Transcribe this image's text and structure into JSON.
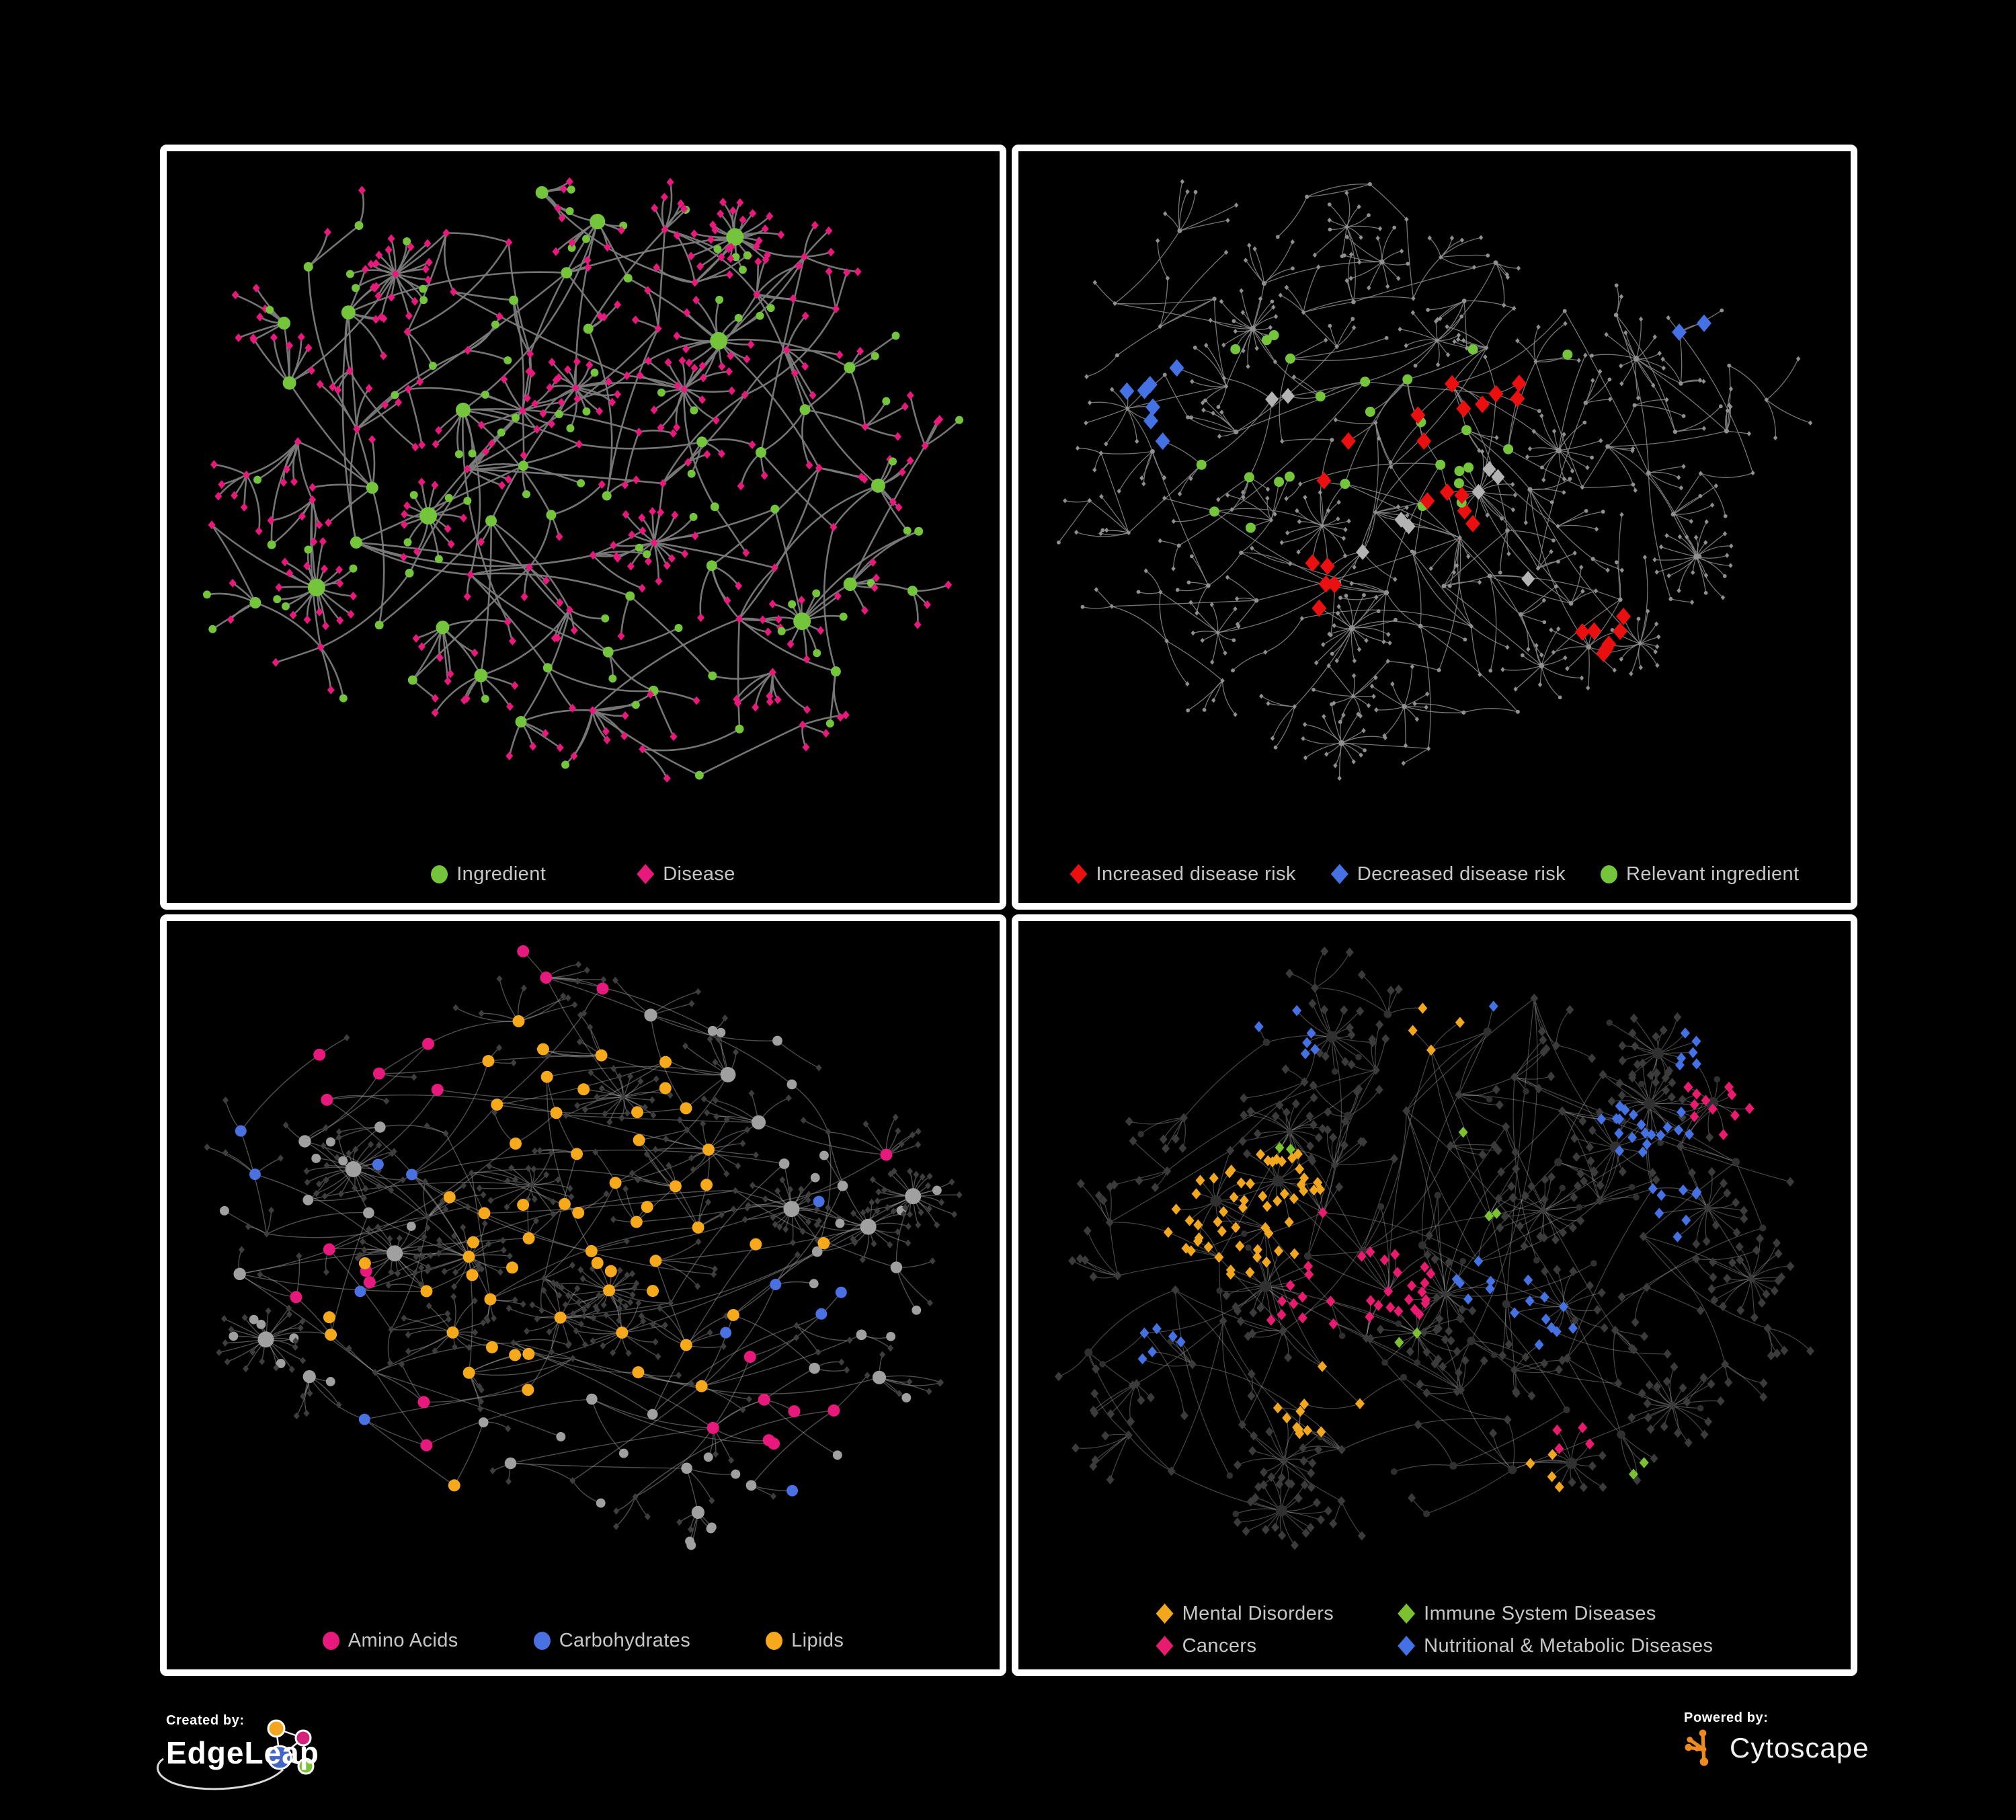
{
  "figure": {
    "background": "#000000",
    "panel_border_color": "#ffffff"
  },
  "panels": [
    {
      "name": "ingredient-disease-network",
      "legend_layout": "row",
      "legend": [
        {
          "label": "Ingredient",
          "shape": "circle",
          "color": "#74C53C"
        },
        {
          "label": "Disease",
          "shape": "diamond",
          "color": "#E8197D"
        }
      ],
      "graph": {
        "type": "network",
        "seed": 7,
        "gen": {
          "internal": 100,
          "recency": 0.55,
          "spread": 2.6,
          "minDist": 84,
          "fanProb": 0.13,
          "fanMin": 10,
          "fanMax": 24,
          "leafMax": 8,
          "leafR0": 26,
          "leafR1": 30,
          "extra": 34
        },
        "style": {
          "edge": {
            "color": "#7B7B7B",
            "width": 2.6,
            "opacity": 0.95
          },
          "circle": {
            "color": "#74C53C",
            "r": 5.5,
            "rDeg": 0.5,
            "rMax": 13
          },
          "diamond": {
            "color": "#E8197D",
            "r": 5.5
          },
          "circleShareInternal": 0.55,
          "leafDiamondShare": 0.82,
          "highlights": []
        }
      }
    },
    {
      "name": "disease-risk-network",
      "legend_layout": "row",
      "legend": [
        {
          "label": "Increased disease risk",
          "shape": "diamond",
          "color": "#EB1010"
        },
        {
          "label": "Decreased disease risk",
          "shape": "diamond",
          "color": "#4472E4"
        },
        {
          "label": "Relevant ingredient",
          "shape": "circle",
          "color": "#74C53C"
        }
      ],
      "graph": {
        "type": "network",
        "seed": 13,
        "gen": {
          "internal": 135,
          "recency": 0.5,
          "spread": 2.4,
          "minDist": 74,
          "fanProb": 0.11,
          "fanMin": 9,
          "fanMax": 20,
          "leafMax": 7,
          "leafR0": 24,
          "leafR1": 30,
          "extra": 26
        },
        "style": {
          "edge": {
            "color": "#8A8A8A",
            "width": 1.3,
            "opacity": 0.85
          },
          "circle": {
            "color": "#8F8F8F",
            "r": 2.8,
            "rDeg": 0.1,
            "rMax": 4.5
          },
          "diamond": {
            "color": "#8F8F8F",
            "r": 3.2
          },
          "circleShareInternal": 0.5,
          "leafDiamondShare": 0.8,
          "highlights": [
            {
              "shape": "diamond",
              "color": "#EB1010",
              "r": 11,
              "count": 27,
              "spread": 0.06,
              "jitter": 0.12,
              "centers": [
                [
                  0.42,
                  0.3
                ],
                [
                  0.5,
                  0.42
                ],
                [
                  0.37,
                  0.48
                ],
                [
                  0.57,
                  0.35
                ],
                [
                  0.52,
                  0.55
                ],
                [
                  0.33,
                  0.68
                ],
                [
                  0.72,
                  0.75
                ]
              ]
            },
            {
              "shape": "diamond",
              "color": "#4472E4",
              "r": 11,
              "count": 9,
              "spread": 0.045,
              "jitter": 0.1,
              "centers": [
                [
                  0.12,
                  0.32
                ],
                [
                  0.15,
                  0.42
                ],
                [
                  0.87,
                  0.25
                ]
              ]
            },
            {
              "shape": "diamond",
              "color": "#B3B3B3",
              "r": 10,
              "count": 9,
              "spread": 0.05,
              "jitter": 0.15,
              "centers": [
                [
                  0.28,
                  0.38
                ],
                [
                  0.55,
                  0.5
                ],
                [
                  0.07,
                  0.28
                ],
                [
                  0.6,
                  0.66
                ],
                [
                  0.44,
                  0.6
                ]
              ]
            },
            {
              "shape": "circle",
              "color": "#74C53C",
              "r": 7.5,
              "count": 26,
              "spread": 0.1,
              "jitter": 0.2,
              "centers": [
                [
                  0.44,
                  0.38
                ],
                [
                  0.3,
                  0.33
                ],
                [
                  0.54,
                  0.48
                ],
                [
                  0.24,
                  0.52
                ],
                [
                  0.62,
                  0.3
                ],
                [
                  0.4,
                  0.55
                ]
              ]
            }
          ]
        }
      }
    },
    {
      "name": "ingredient-class-network",
      "legend_layout": "row",
      "legend": [
        {
          "label": "Amino Acids",
          "shape": "circle",
          "color": "#E8197D"
        },
        {
          "label": "Carbohydrates",
          "shape": "circle",
          "color": "#4971E1"
        },
        {
          "label": "Lipids",
          "shape": "circle",
          "color": "#F7A91C"
        }
      ],
      "graph": {
        "type": "network",
        "seed": 29,
        "gen": {
          "internal": 115,
          "recency": 0.55,
          "spread": 2.6,
          "minDist": 80,
          "fanProb": 0.14,
          "fanMin": 12,
          "fanMax": 26,
          "leafMax": 8,
          "leafR0": 25,
          "leafR1": 30,
          "extra": 30
        },
        "style": {
          "edge": {
            "color": "#9C9C9C",
            "width": 1.4,
            "opacity": 0.5
          },
          "circle": {
            "color": "#A0A0A0",
            "r": 6.5,
            "rDeg": 0.45,
            "rMax": 12
          },
          "diamond": {
            "color": "#3E3E3E",
            "r": 4.5
          },
          "circleShareInternal": 0.88,
          "leafDiamondShare": 0.88,
          "highlights": [
            {
              "shape": "circle",
              "color": "#F7A91C",
              "r": 9,
              "count": 58,
              "spread": 0.07,
              "jitter": 0.25,
              "centers": [
                [
                  0.47,
                  0.4
                ],
                [
                  0.52,
                  0.22
                ],
                [
                  0.43,
                  0.5
                ],
                [
                  0.55,
                  0.6
                ],
                [
                  0.35,
                  0.65
                ],
                [
                  0.62,
                  0.45
                ]
              ]
            },
            {
              "shape": "circle",
              "color": "#E8197D",
              "r": 9,
              "count": 22,
              "spread": 0.05,
              "jitter": 0.3,
              "centers": [
                [
                  0.72,
                  0.72
                ],
                [
                  0.75,
                  0.78
                ],
                [
                  0.12,
                  0.52
                ],
                [
                  0.3,
                  0.82
                ],
                [
                  0.2,
                  0.2
                ],
                [
                  0.95,
                  0.28
                ],
                [
                  0.35,
                  0.62
                ],
                [
                  0.45,
                  0.05
                ]
              ]
            },
            {
              "shape": "circle",
              "color": "#4971E1",
              "r": 8.5,
              "count": 12,
              "spread": 0.03,
              "jitter": 0.25,
              "centers": [
                [
                  0.5,
                  0.42
                ],
                [
                  0.52,
                  0.38
                ],
                [
                  0.3,
                  0.05
                ],
                [
                  0.72,
                  0.6
                ],
                [
                  0.05,
                  0.3
                ]
              ]
            }
          ]
        }
      }
    },
    {
      "name": "disease-category-network",
      "legend_layout": "grid2",
      "legend": [
        {
          "label": "Mental Disorders",
          "shape": "diamond",
          "color": "#F2A71F"
        },
        {
          "label": "Immune System Diseases",
          "shape": "diamond",
          "color": "#7CC230"
        },
        {
          "label": "Cancers",
          "shape": "diamond",
          "color": "#E81B6E"
        },
        {
          "label": "Nutritional & Metabolic Diseases",
          "shape": "diamond",
          "color": "#4472E4"
        }
      ],
      "graph": {
        "type": "network",
        "seed": 47,
        "gen": {
          "internal": 110,
          "recency": 0.55,
          "spread": 2.5,
          "minDist": 78,
          "fanProb": 0.14,
          "fanMin": 12,
          "fanMax": 26,
          "leafMax": 8,
          "leafR0": 25,
          "leafR1": 30,
          "extra": 30
        },
        "style": {
          "edge": {
            "color": "#9C9C9C",
            "width": 1.2,
            "opacity": 0.45
          },
          "circle": {
            "color": "#303030",
            "r": 4.5,
            "rDeg": 0.3,
            "rMax": 8.5
          },
          "diamond": {
            "color": "#3B3B3B",
            "r": 6
          },
          "circleShareInternal": 0.3,
          "leafDiamondShare": 0.95,
          "highlights": [
            {
              "shape": "diamond",
              "color": "#F2A71F",
              "r": 7,
              "count": 75,
              "spread": 0.06,
              "jitter": 0.12,
              "centers": [
                [
                  0.2,
                  0.45
                ],
                [
                  0.25,
                  0.52
                ],
                [
                  0.28,
                  0.4
                ],
                [
                  0.5,
                  0.16
                ],
                [
                  0.36,
                  0.76
                ],
                [
                  0.62,
                  0.9
                ]
              ]
            },
            {
              "shape": "diamond",
              "color": "#E81B6E",
              "r": 7,
              "count": 48,
              "spread": 0.05,
              "jitter": 0.15,
              "centers": [
                [
                  0.38,
                  0.5
                ],
                [
                  0.44,
                  0.56
                ],
                [
                  0.34,
                  0.58
                ],
                [
                  0.47,
                  0.42
                ],
                [
                  0.9,
                  0.25
                ],
                [
                  0.66,
                  0.82
                ]
              ]
            },
            {
              "shape": "diamond",
              "color": "#4472E4",
              "r": 7,
              "count": 62,
              "spread": 0.06,
              "jitter": 0.2,
              "centers": [
                [
                  0.57,
                  0.55
                ],
                [
                  0.63,
                  0.62
                ],
                [
                  0.78,
                  0.3
                ],
                [
                  0.86,
                  0.16
                ],
                [
                  0.56,
                  0.1
                ],
                [
                  0.3,
                  0.14
                ],
                [
                  0.82,
                  0.44
                ],
                [
                  0.52,
                  0.86
                ],
                [
                  0.14,
                  0.66
                ]
              ]
            },
            {
              "shape": "diamond",
              "color": "#7CC230",
              "r": 7,
              "count": 9,
              "spread": 0.025,
              "jitter": 0.3,
              "centers": [
                [
                  0.3,
                  0.33
                ],
                [
                  0.52,
                  0.3
                ],
                [
                  0.46,
                  0.64
                ],
                [
                  0.18,
                  0.5
                ],
                [
                  0.76,
                  0.86
                ],
                [
                  0.56,
                  0.44
                ]
              ]
            }
          ]
        }
      }
    }
  ],
  "footer": {
    "created_by": {
      "label": "Created by:",
      "brand": "EdgeLeap"
    },
    "powered_by": {
      "label": "Powered by:",
      "brand": "Cytoscape"
    },
    "edgeleap_logo_colors": {
      "orange": "#F2A71F",
      "pink": "#D4237A",
      "blue": "#4467C6",
      "green": "#7CC236",
      "line": "#F2F2F2"
    },
    "cytoscape_logo_color": "#ED8B1E"
  }
}
